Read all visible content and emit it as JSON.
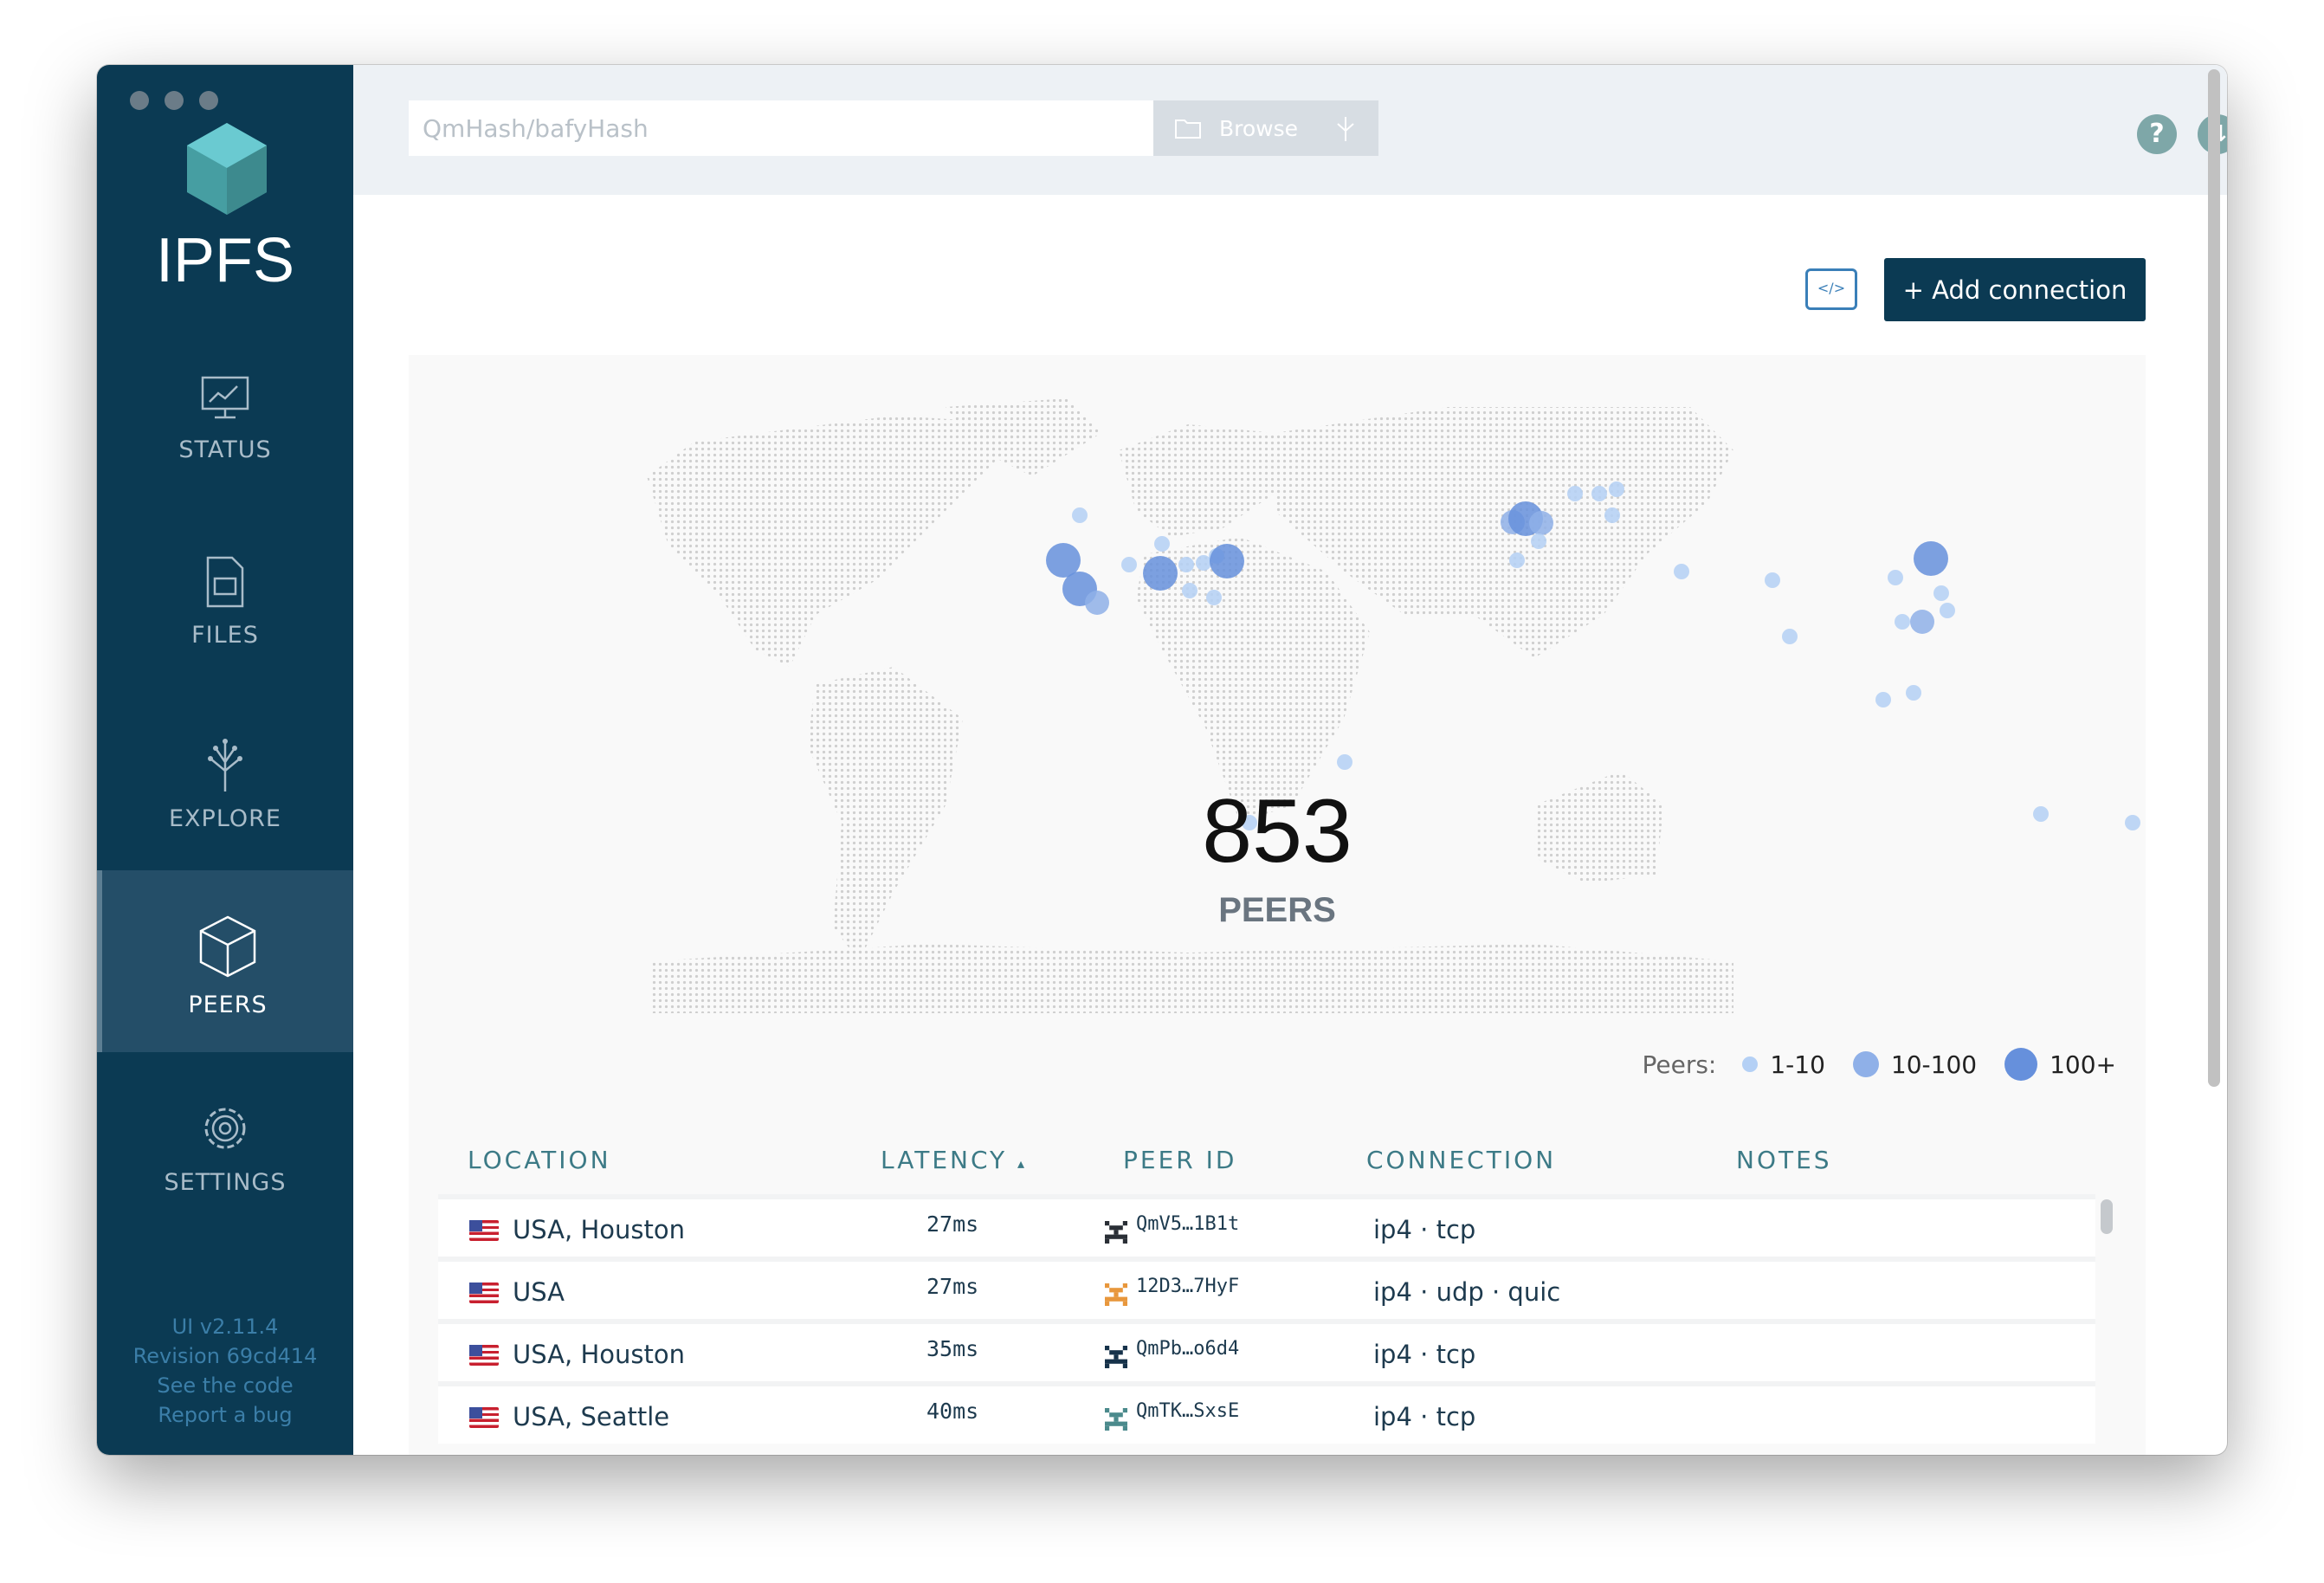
{
  "app": {
    "brand": "IPFS"
  },
  "sidebar": {
    "items": [
      {
        "label": "STATUS"
      },
      {
        "label": "FILES"
      },
      {
        "label": "EXPLORE"
      },
      {
        "label": "PEERS",
        "active": true
      },
      {
        "label": "SETTINGS"
      }
    ],
    "footer": {
      "version": "UI v2.11.4",
      "revision": "Revision 69cd414",
      "code_link": "See the code",
      "bug_link": "Report a bug"
    }
  },
  "topbar": {
    "search_placeholder": "QmHash/bafyHash",
    "browse_label": "Browse",
    "help_icon": "question-icon",
    "transfer_icon": "up-down-arrows-icon"
  },
  "toolbar": {
    "code_icon": "</>",
    "add_label": "+ Add connection"
  },
  "map": {
    "peer_count": "853",
    "peer_label": "PEERS",
    "legend": {
      "label": "Peers:",
      "items": [
        "1-10",
        "10-100",
        "100+"
      ],
      "colors": [
        "#b4d0f5",
        "#8fb0e8",
        "#6690dc"
      ]
    }
  },
  "table": {
    "headers": {
      "location": "LOCATION",
      "latency": "LATENCY",
      "latency_sort": "▴",
      "peer_id": "PEER ID",
      "connection": "CONNECTION",
      "notes": "NOTES"
    },
    "rows": [
      {
        "location": "USA, Houston",
        "latency": "27ms",
        "peer_id": "QmV5…1B1t",
        "connection": "ip4 · tcp",
        "identicon": "#2a2f36"
      },
      {
        "location": "USA",
        "latency": "27ms",
        "peer_id": "12D3…7HyF",
        "connection": "ip4 · udp · quic",
        "identicon": "#e8973c"
      },
      {
        "location": "USA, Houston",
        "latency": "35ms",
        "peer_id": "QmPb…o6d4",
        "connection": "ip4 · tcp",
        "identicon": "#16324a"
      },
      {
        "location": "USA, Seattle",
        "latency": "40ms",
        "peer_id": "QmTK…SxsE",
        "connection": "ip4 · tcp",
        "identicon": "#4b8a8c"
      }
    ]
  }
}
